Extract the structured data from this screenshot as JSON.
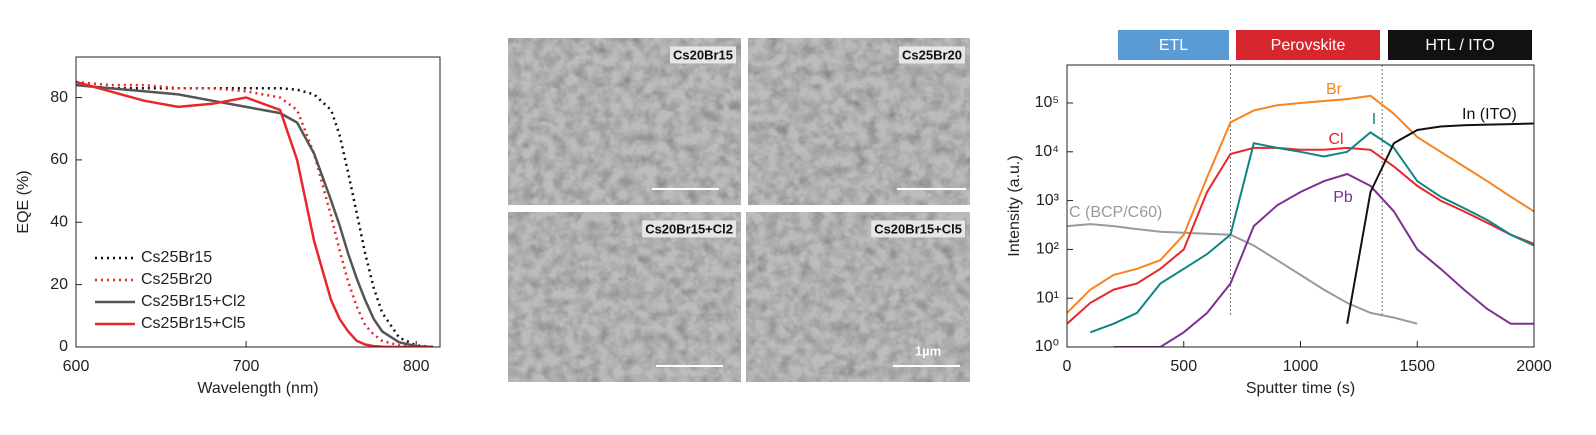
{
  "chart_data": [
    {
      "type": "line",
      "x_label": "Wavelength (nm)",
      "y_label": "EQE (%)",
      "x": [
        600,
        620,
        640,
        660,
        680,
        700,
        720,
        730,
        740,
        750,
        755,
        760,
        765,
        770,
        775,
        780,
        790,
        800,
        810
      ],
      "series": [
        {
          "name": "Cs25Br15",
          "color": "#111111",
          "dash": true,
          "values": [
            84,
            83,
            83,
            83,
            83,
            83,
            83,
            82.5,
            81,
            76,
            68,
            56,
            43,
            30,
            19,
            11,
            3,
            0.5,
            0
          ]
        },
        {
          "name": "Cs25Br20",
          "color": "#e8262b",
          "dash": true,
          "values": [
            85,
            84,
            84,
            83,
            83,
            82,
            80,
            76,
            62,
            42,
            31,
            21,
            13,
            7,
            4,
            2,
            0.5,
            0,
            0
          ]
        },
        {
          "name": "Cs25Br15+Cl2",
          "color": "#555555",
          "dash": false,
          "values": [
            84,
            83,
            82,
            81,
            79,
            77,
            75,
            72,
            62,
            47,
            39,
            30,
            22,
            15,
            9,
            5,
            1.5,
            0.3,
            0
          ]
        },
        {
          "name": "Cs25Br15+Cl5",
          "color": "#e8262b",
          "dash": false,
          "values": [
            85,
            82,
            79,
            77,
            78,
            80,
            76,
            60,
            34,
            15,
            9,
            5,
            2,
            0.8,
            0.3,
            0.1,
            0,
            0,
            0
          ]
        }
      ],
      "xlim": [
        600,
        814
      ],
      "xticks": [
        600,
        700,
        800
      ],
      "ylim": [
        0,
        93
      ],
      "yticks": [
        0,
        20,
        40,
        60,
        80
      ],
      "legend": "lower-left"
    },
    {
      "type": "line",
      "x_label": "Sputter time (s)",
      "y_label": "Intensity (a.u.)",
      "log_y": true,
      "x": [
        0,
        100,
        200,
        300,
        400,
        500,
        600,
        700,
        800,
        900,
        1000,
        1100,
        1200,
        1300,
        1400,
        1500,
        1600,
        1700,
        1800,
        1900,
        2000
      ],
      "series": [
        {
          "name": "C (BCP/C60)",
          "color": "#9a9a9a",
          "values": [
            300,
            330,
            300,
            260,
            230,
            220,
            210,
            200,
            120,
            60,
            30,
            15,
            8,
            5,
            4,
            3,
            null,
            2,
            null,
            null,
            null
          ]
        },
        {
          "name": "Br",
          "color": "#f7841e",
          "values": [
            5,
            15,
            30,
            40,
            60,
            200,
            3000,
            40000,
            70000,
            90000,
            100000,
            110000,
            120000,
            140000,
            60000,
            20000,
            10000,
            5000,
            2500,
            1200,
            600
          ]
        },
        {
          "name": "Cl",
          "color": "#e8262b",
          "values": [
            3,
            8,
            15,
            20,
            40,
            100,
            1500,
            9000,
            12000,
            12000,
            11000,
            11000,
            12000,
            11000,
            5000,
            2000,
            1000,
            600,
            350,
            200,
            130
          ]
        },
        {
          "name": "I",
          "color": "#0e8584",
          "values": [
            null,
            2,
            3,
            5,
            20,
            40,
            80,
            200,
            15000,
            12000,
            10000,
            8000,
            10000,
            25000,
            12000,
            2500,
            1200,
            700,
            400,
            200,
            120
          ]
        },
        {
          "name": "Pb",
          "color": "#7b3294",
          "values": [
            null,
            null,
            1,
            1,
            1,
            2,
            5,
            20,
            300,
            800,
            1500,
            2500,
            3500,
            2000,
            600,
            100,
            40,
            15,
            6,
            3,
            3
          ]
        },
        {
          "name": "In  (ITO)",
          "color": "#111111",
          "values": [
            null,
            null,
            null,
            null,
            null,
            null,
            null,
            null,
            null,
            null,
            null,
            null,
            3,
            1500,
            15000,
            28000,
            33000,
            35000,
            36000,
            37000,
            38000
          ]
        }
      ],
      "xlim": [
        0,
        2000
      ],
      "xticks": [
        0,
        500,
        1000,
        1500,
        2000
      ],
      "ylim": [
        1,
        600000
      ],
      "yticks": [
        {
          "value": 1,
          "label": "10⁰"
        },
        {
          "value": 10,
          "label": "10¹"
        },
        {
          "value": 100,
          "label": "10²"
        },
        {
          "value": 1000,
          "label": "10³"
        },
        {
          "value": 10000,
          "label": "10⁴"
        },
        {
          "value": 100000,
          "label": "10⁵"
        }
      ],
      "vlines": [
        700,
        1350
      ],
      "regions": [
        {
          "label": "ETL",
          "color": "#5b9bd5"
        },
        {
          "label": "Perovskite",
          "color": "#d7262e"
        },
        {
          "label": "HTL / ITO",
          "color": "#111111"
        }
      ]
    }
  ],
  "sem_images": {
    "panels": [
      "Cs20Br15",
      "Cs25Br20",
      "Cs20Br15+Cl2",
      "Cs20Br15+Cl5"
    ],
    "scale_label": "1µm"
  }
}
